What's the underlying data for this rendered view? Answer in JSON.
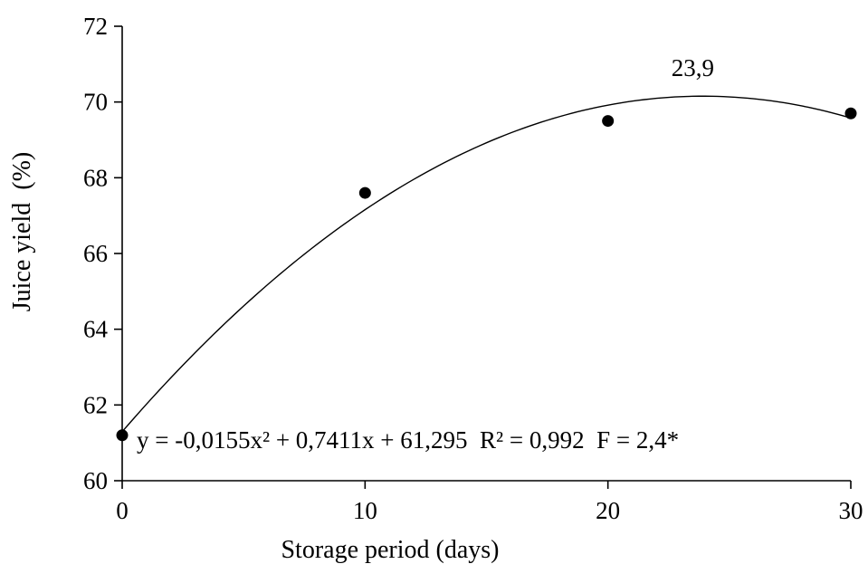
{
  "chart_data": {
    "type": "scatter",
    "xlabel": "Storage period (days)",
    "ylabel": "Juice yield  (%)",
    "xlim": [
      0,
      30
    ],
    "ylim": [
      60,
      72
    ],
    "x_ticks": [
      "0",
      "10",
      "20",
      "30"
    ],
    "y_ticks": [
      "60",
      "62",
      "64",
      "66",
      "68",
      "70",
      "72"
    ],
    "grid": false,
    "series": [
      {
        "x": [
          0,
          10,
          20,
          30
        ],
        "y": [
          61.2,
          67.6,
          69.5,
          69.7
        ],
        "marker": "filled-circle",
        "color": "#000000"
      }
    ],
    "trendline": {
      "type": "quadratic",
      "coefficients": {
        "a": -0.0155,
        "b": 0.7411,
        "c": 61.295
      },
      "equation_text": "y = -0,0155x² + 0,7411x + 61,295  R² = 0,992  F = 2,4*"
    },
    "annotations": [
      {
        "text": "23,9",
        "x": 23.9,
        "y": 71.0
      }
    ]
  }
}
